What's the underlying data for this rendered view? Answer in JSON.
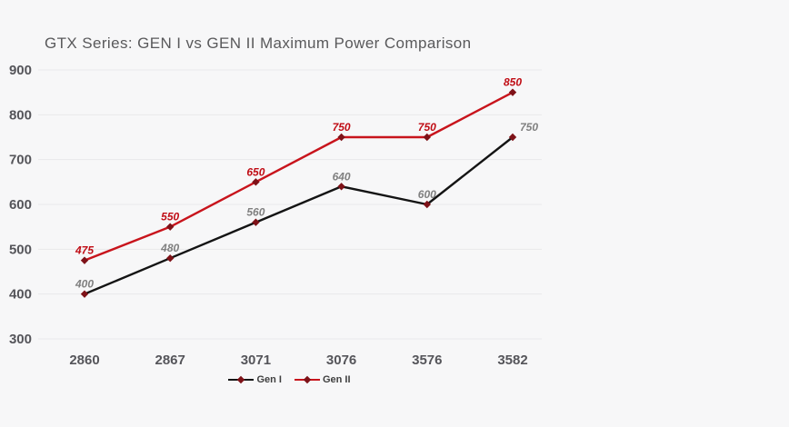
{
  "chart_data": {
    "type": "line",
    "title": "GTX Series: GEN I vs GEN II Maximum Power Comparison",
    "categories": [
      "2860",
      "2867",
      "3071",
      "3076",
      "3576",
      "3582"
    ],
    "series": [
      {
        "name": "Gen I",
        "values": [
          400,
          480,
          560,
          640,
          600,
          750
        ],
        "line_color": "#141414",
        "label_color": "#808080",
        "label_dx": [
          0,
          0,
          0,
          0,
          0,
          18
        ]
      },
      {
        "name": "Gen II",
        "values": [
          475,
          550,
          650,
          750,
          750,
          850
        ],
        "line_color": "#c8141c",
        "label_color": "#c00d15",
        "label_dx": [
          0,
          0,
          0,
          0,
          0,
          0
        ]
      }
    ],
    "marker": "diamond",
    "marker_color": "#7e1218",
    "y_axis": {
      "min": 300,
      "max": 900,
      "step": 100,
      "tick_labels": [
        "300",
        "400",
        "500",
        "600",
        "700",
        "800",
        "900"
      ]
    },
    "grid": true,
    "legend_position": "bottom",
    "colors": {
      "background": "#f7f7f8",
      "grid": "#e9e9eb",
      "axis_text": "#55555a",
      "title_text": "#59595b",
      "legend_text": "#3f3f3f"
    }
  }
}
